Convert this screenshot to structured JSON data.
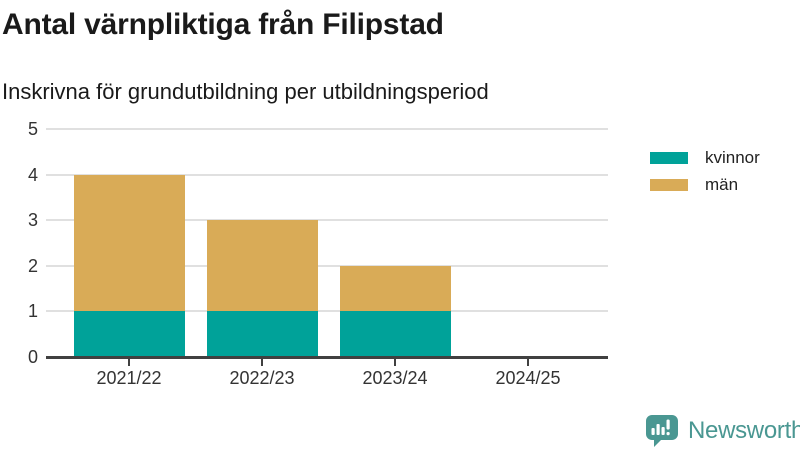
{
  "header": {
    "title": "Antal värnpliktiga från Filipstad",
    "subtitle": "Inskrivna för grundutbildning per utbildningsperiod"
  },
  "chart_data": {
    "type": "bar",
    "stacked": true,
    "title": "Antal värnpliktiga från Filipstad",
    "subtitle": "Inskrivna för grundutbildning per utbildningsperiod",
    "categories": [
      "2021/22",
      "2022/23",
      "2023/24",
      "2024/25"
    ],
    "series": [
      {
        "name": "kvinnor",
        "color": "#00a299",
        "values": [
          1,
          1,
          1,
          0
        ]
      },
      {
        "name": "män",
        "color": "#d9ab57",
        "values": [
          3,
          2,
          1,
          0
        ]
      }
    ],
    "totals": [
      4,
      3,
      2,
      0
    ],
    "xlabel": "",
    "ylabel": "",
    "ylim": [
      0,
      5
    ],
    "yticks": [
      0,
      1,
      2,
      3,
      4,
      5
    ],
    "grid": true,
    "legend_position": "right"
  },
  "branding": {
    "logo_label": "Newsworthy",
    "logo_icon": "newsworthy-speech-bubble-bar-chart-icon",
    "logo_color": "#4a9792"
  },
  "colors": {
    "series_kvinnor": "#00a299",
    "series_man": "#d9ab57",
    "axis_line": "#404040",
    "gridline": "#e0e0e0",
    "title_text": "#1a1a1a",
    "tick_text": "#333333"
  }
}
